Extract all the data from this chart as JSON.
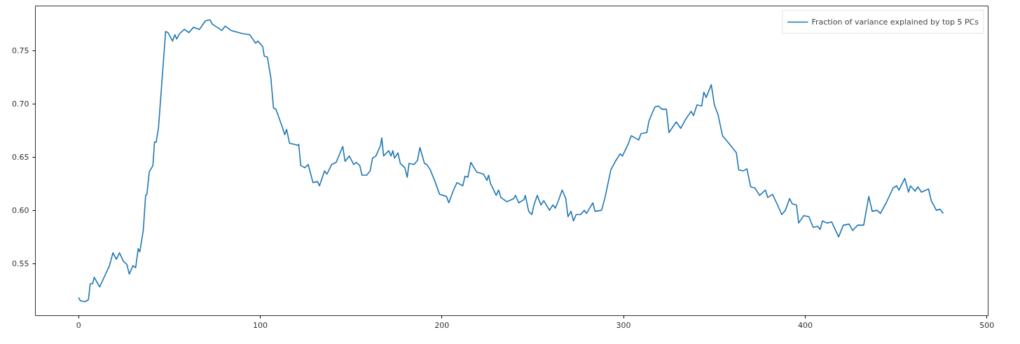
{
  "chart_data": {
    "type": "line",
    "xlim": [
      -23.8,
      500.7
    ],
    "ylim": [
      0.501,
      0.792
    ],
    "xticks": [
      0,
      100,
      200,
      300,
      400,
      500
    ],
    "yticks": [
      0.55,
      {
        "value": 0.6,
        "label": "0.60"
      },
      0.65,
      {
        "value": 0.7,
        "label": "0.70"
      },
      0.75
    ],
    "grid": false,
    "legend": "top right",
    "series": [
      {
        "name": "Fraction of variance explained by top 5 PCs",
        "color": "#1f77b4",
        "x": [
          0,
          0.9,
          3.5,
          5.4,
          6.4,
          7.7,
          8.6,
          11.6,
          17,
          18.9,
          20.8,
          22.5,
          24.7,
          26.6,
          27.9,
          29.9,
          31.4,
          32.8,
          33.7,
          35.6,
          36.9,
          37.6,
          38.9,
          40.9,
          41.8,
          42.7,
          44,
          47.9,
          49.2,
          51.7,
          53,
          54,
          55.6,
          58.2,
          60.7,
          63.3,
          66.5,
          69.8,
          72.3,
          73.6,
          78.8,
          80.7,
          83.9,
          90.3,
          94.2,
          97.4,
          98.7,
          101.3,
          102.2,
          103.9,
          105.8,
          107.3,
          108.6,
          112.2,
          113.5,
          114.5,
          116.1,
          118.7,
          120.6,
          121.2,
          122.3,
          124.5,
          126.4,
          129,
          131.5,
          132.6,
          135.4,
          136.7,
          139.3,
          141.8,
          145.4,
          146.7,
          149,
          151.5,
          152.9,
          154.8,
          156,
          158.6,
          160.5,
          161.8,
          163.7,
          166.2,
          166.9,
          167.9,
          170.7,
          172,
          173,
          173.9,
          175.8,
          177.1,
          179.6,
          180.9,
          181.9,
          184.7,
          186.6,
          187.9,
          190.4,
          191.7,
          193.6,
          196.2,
          198.7,
          202.5,
          203.8,
          206.4,
          208.3,
          211.5,
          212.7,
          214.3,
          215.9,
          219.1,
          222.9,
          224.8,
          225.7,
          226.8,
          229.9,
          231.2,
          232.5,
          235.7,
          239.5,
          240.5,
          242.3,
          245.2,
          245.9,
          247.8,
          249.5,
          250.7,
          252.5,
          254.5,
          256.1,
          259.2,
          261.1,
          262.4,
          263.7,
          266.2,
          268.2,
          269.4,
          271.1,
          272.4,
          273.9,
          276.4,
          278.4,
          279.6,
          283.1,
          284.3,
          287.9,
          289.8,
          293,
          295.5,
          298.1,
          299.4,
          302.5,
          304.2,
          306.4,
          308.3,
          309.6,
          312.8,
          314,
          317.2,
          319.2,
          321.1,
          323.6,
          325,
          329,
          331.5,
          334,
          337.2,
          338.5,
          340.4,
          343,
          344.2,
          345.5,
          348.3,
          350,
          352,
          354.5,
          357,
          358.9,
          362.1,
          363.4,
          366,
          367.9,
          370,
          372.3,
          374.9,
          378.1,
          379.4,
          382,
          384.5,
          387.1,
          389.1,
          391.4,
          392.9,
          395.2,
          396.4,
          399.2,
          402,
          404.4,
          406.9,
          408.2,
          409.5,
          412,
          414.6,
          418.4,
          421,
          424.2,
          426.1,
          428.9,
          432.2,
          435,
          436.9,
          439.5,
          441.4,
          444.6,
          448.4,
          450.3,
          451.6,
          454.8,
          456.9,
          457.9,
          460.5,
          462,
          464,
          467.9,
          469.4,
          472.2,
          474.2,
          476
        ],
        "values": [
          0.518,
          0.515,
          0.514,
          0.516,
          0.531,
          0.531,
          0.537,
          0.528,
          0.548,
          0.56,
          0.554,
          0.56,
          0.552,
          0.549,
          0.54,
          0.548,
          0.546,
          0.564,
          0.561,
          0.581,
          0.614,
          0.615,
          0.636,
          0.642,
          0.664,
          0.664,
          0.678,
          0.768,
          0.767,
          0.759,
          0.765,
          0.761,
          0.766,
          0.77,
          0.767,
          0.772,
          0.77,
          0.778,
          0.779,
          0.775,
          0.769,
          0.773,
          0.769,
          0.766,
          0.765,
          0.757,
          0.759,
          0.754,
          0.745,
          0.744,
          0.725,
          0.696,
          0.695,
          0.678,
          0.671,
          0.676,
          0.663,
          0.662,
          0.661,
          0.662,
          0.642,
          0.64,
          0.643,
          0.626,
          0.627,
          0.623,
          0.637,
          0.634,
          0.643,
          0.645,
          0.66,
          0.646,
          0.651,
          0.643,
          0.645,
          0.642,
          0.633,
          0.633,
          0.637,
          0.649,
          0.651,
          0.661,
          0.668,
          0.651,
          0.656,
          0.651,
          0.656,
          0.649,
          0.654,
          0.644,
          0.64,
          0.631,
          0.644,
          0.643,
          0.647,
          0.659,
          0.644,
          0.643,
          0.638,
          0.627,
          0.615,
          0.613,
          0.607,
          0.619,
          0.626,
          0.623,
          0.632,
          0.631,
          0.645,
          0.636,
          0.634,
          0.628,
          0.633,
          0.625,
          0.614,
          0.619,
          0.612,
          0.608,
          0.611,
          0.614,
          0.607,
          0.61,
          0.614,
          0.599,
          0.596,
          0.605,
          0.614,
          0.605,
          0.609,
          0.6,
          0.605,
          0.602,
          0.607,
          0.619,
          0.611,
          0.594,
          0.599,
          0.59,
          0.596,
          0.596,
          0.6,
          0.597,
          0.607,
          0.599,
          0.6,
          0.612,
          0.638,
          0.646,
          0.653,
          0.651,
          0.662,
          0.67,
          0.668,
          0.666,
          0.672,
          0.673,
          0.684,
          0.697,
          0.698,
          0.695,
          0.695,
          0.673,
          0.683,
          0.677,
          0.685,
          0.693,
          0.689,
          0.699,
          0.698,
          0.711,
          0.706,
          0.718,
          0.699,
          0.69,
          0.67,
          0.665,
          0.661,
          0.654,
          0.638,
          0.637,
          0.639,
          0.622,
          0.621,
          0.614,
          0.619,
          0.612,
          0.615,
          0.606,
          0.596,
          0.6,
          0.611,
          0.606,
          0.605,
          0.588,
          0.595,
          0.594,
          0.584,
          0.585,
          0.582,
          0.59,
          0.588,
          0.589,
          0.575,
          0.586,
          0.587,
          0.581,
          0.586,
          0.586,
          0.613,
          0.599,
          0.6,
          0.597,
          0.607,
          0.621,
          0.623,
          0.619,
          0.63,
          0.617,
          0.623,
          0.618,
          0.622,
          0.617,
          0.62,
          0.609,
          0.6,
          0.601,
          0.597
        ]
      }
    ]
  }
}
